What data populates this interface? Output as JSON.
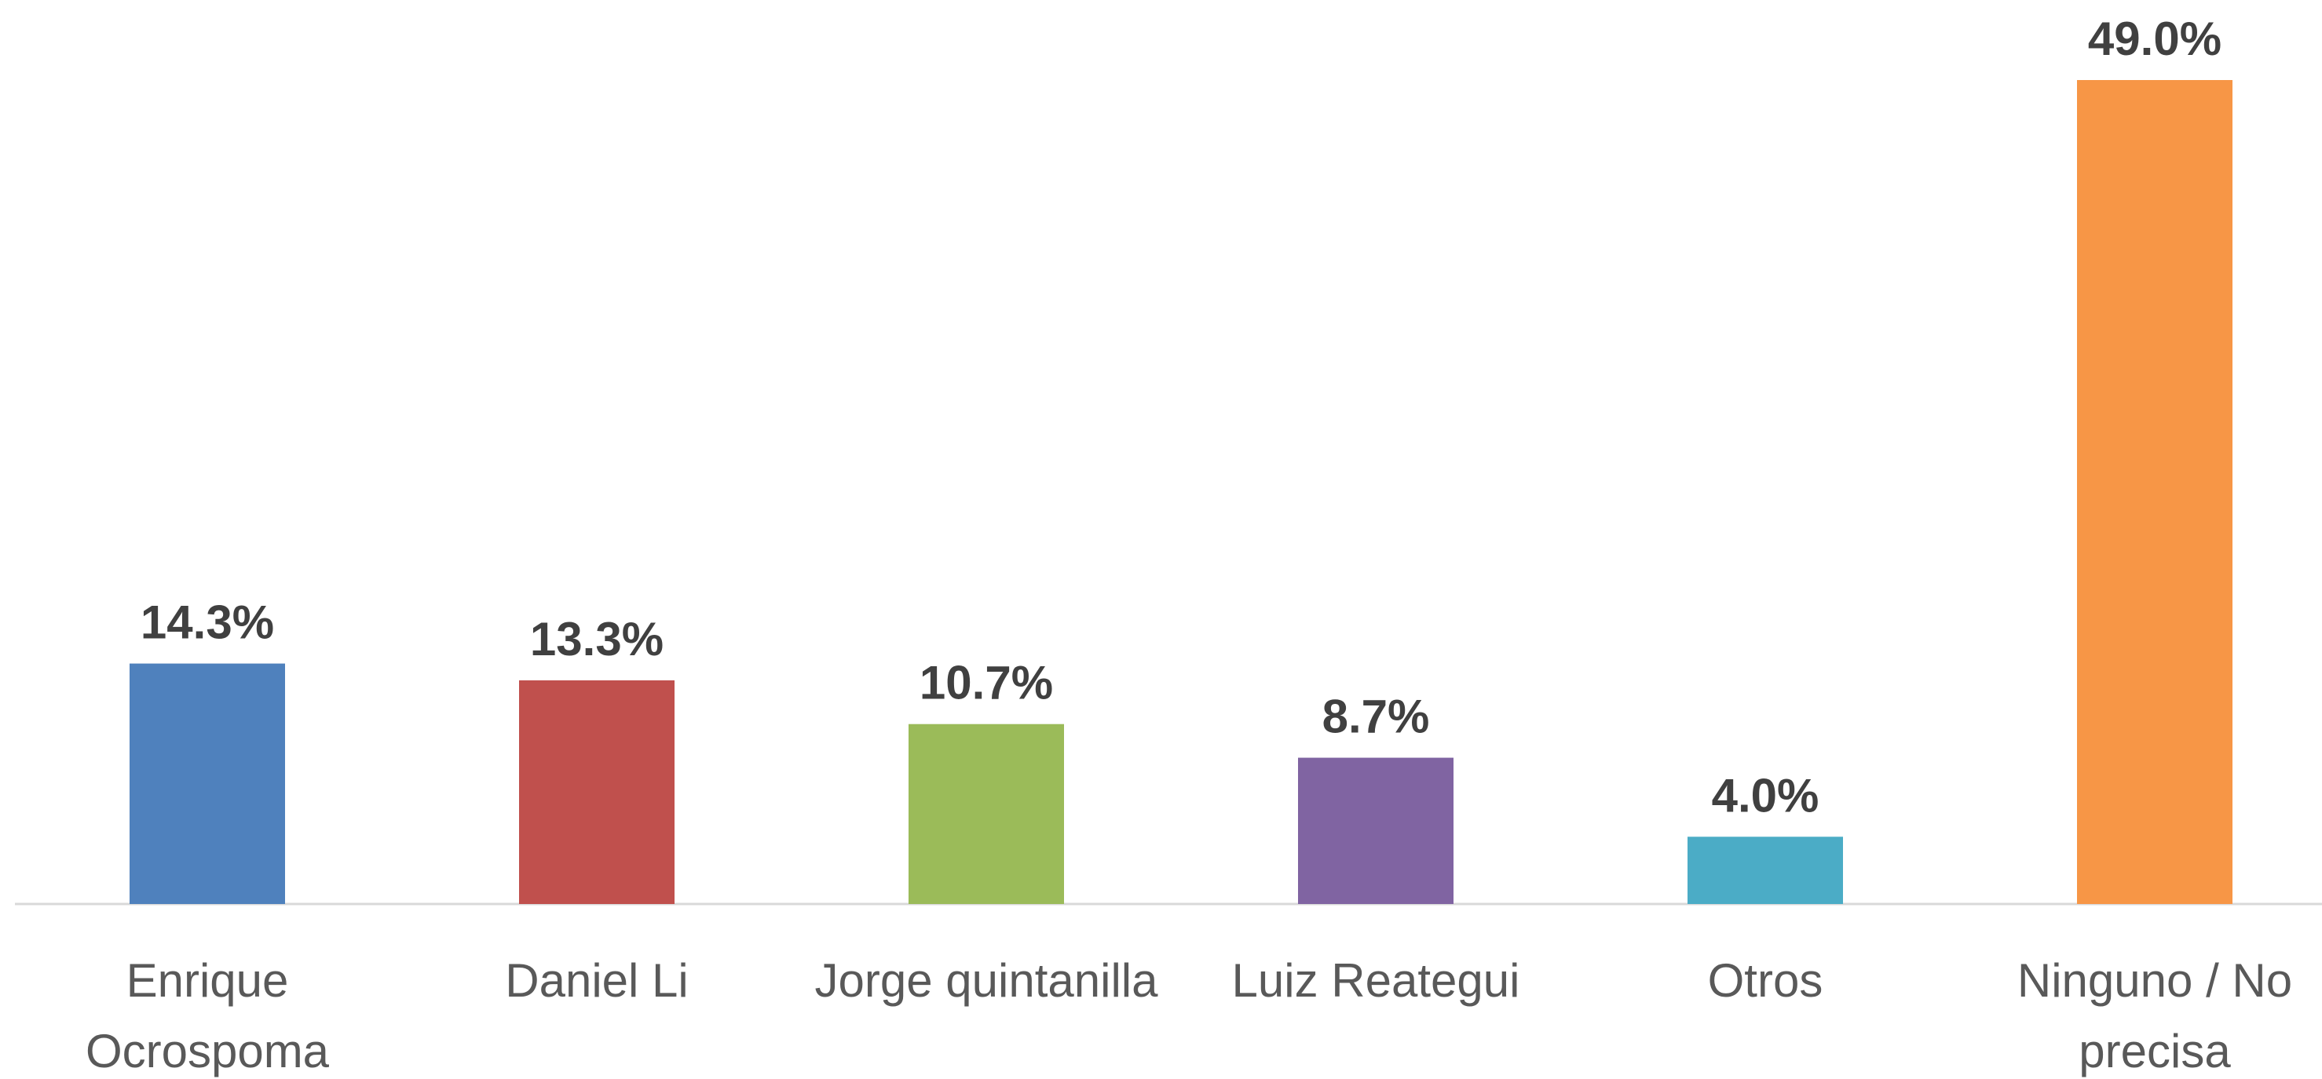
{
  "chart_data": {
    "type": "bar",
    "categories": [
      "Enrique Ocrospoma",
      "Daniel Li",
      "Jorge quintanilla",
      "Luiz Reategui",
      "Otros",
      "Ninguno / No precisa"
    ],
    "values": [
      14.3,
      13.3,
      10.7,
      8.7,
      4.0,
      49.0
    ],
    "value_labels": [
      "14.3%",
      "13.3%",
      "10.7%",
      "8.7%",
      "4.0%",
      "49.0%"
    ],
    "colors": [
      "#4f81bd",
      "#c0504d",
      "#9bbb59",
      "#8064a2",
      "#4bacc6",
      "#f79646"
    ]
  }
}
